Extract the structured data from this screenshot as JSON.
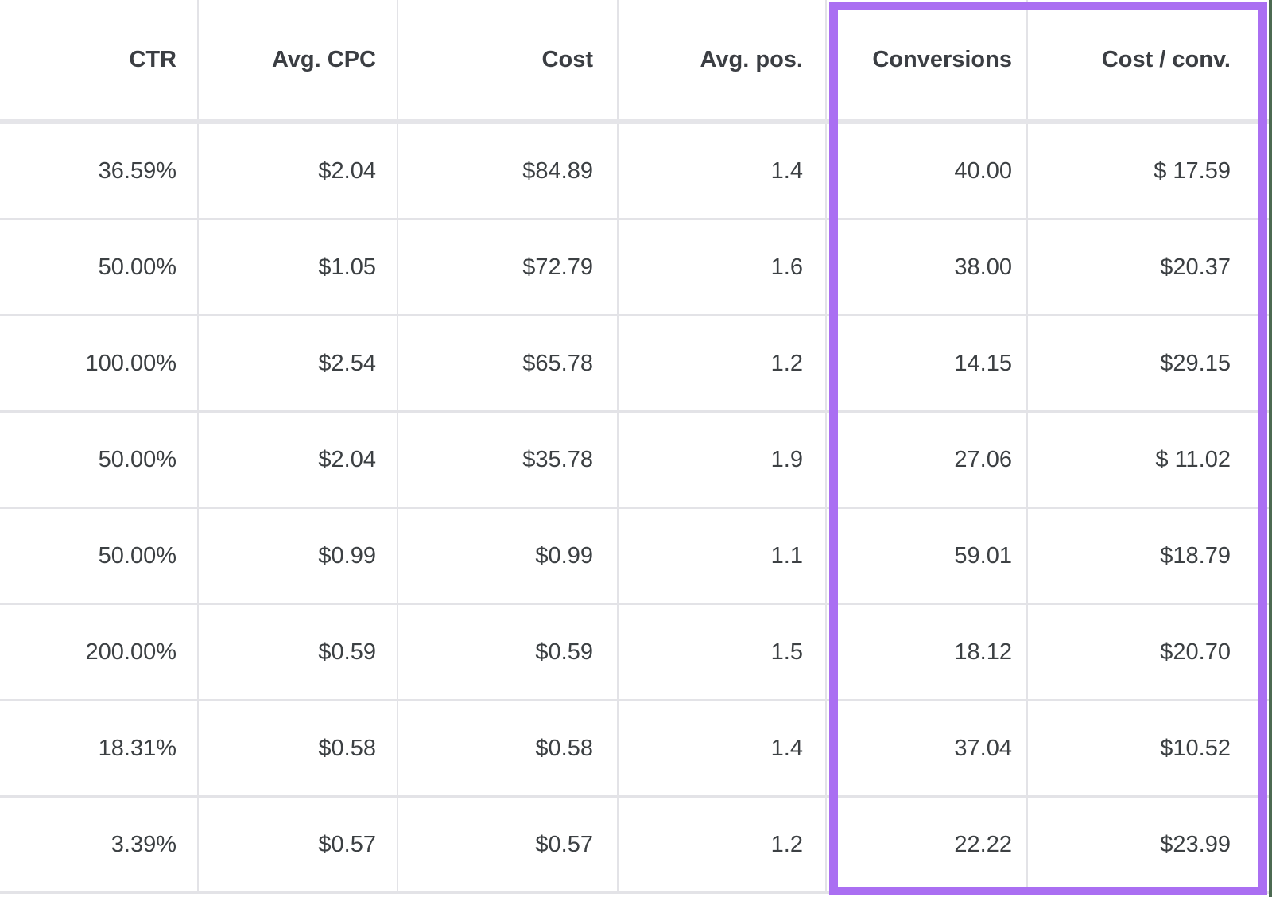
{
  "table": {
    "columns": [
      {
        "id": "ctr",
        "label": "CTR"
      },
      {
        "id": "avg_cpc",
        "label": "Avg. CPC"
      },
      {
        "id": "cost",
        "label": "Cost"
      },
      {
        "id": "avg_pos",
        "label": "Avg. pos."
      },
      {
        "id": "conversions",
        "label": "Conversions"
      },
      {
        "id": "cost_per_conv",
        "label": "Cost / conv."
      }
    ],
    "rows": [
      [
        "36.59%",
        "$2.04",
        "$84.89",
        "1.4",
        "40.00",
        "$ 17.59"
      ],
      [
        "50.00%",
        "$1.05",
        "$72.79",
        "1.6",
        "38.00",
        "$20.37"
      ],
      [
        "100.00%",
        "$2.54",
        "$65.78",
        "1.2",
        "14.15",
        "$29.15"
      ],
      [
        "50.00%",
        "$2.04",
        "$35.78",
        "1.9",
        "27.06",
        "$ 11.02"
      ],
      [
        "50.00%",
        "$0.99",
        "$0.99",
        "1.1",
        "59.01",
        "$18.79"
      ],
      [
        "200.00%",
        "$0.59",
        "$0.59",
        "1.5",
        "18.12",
        "$20.70"
      ],
      [
        "18.31%",
        "$0.58",
        "$0.58",
        "1.4",
        "37.04",
        "$10.52"
      ],
      [
        "3.39%",
        "$0.57",
        "$0.57",
        "1.2",
        "22.22",
        "$23.99"
      ]
    ]
  },
  "highlight": {
    "highlighted_columns": [
      "Conversions",
      "Cost / conv."
    ],
    "color": "#aa6ff2"
  },
  "colors": {
    "text": "#3c4043",
    "grid_line": "#e3e3e7",
    "header_divider": "#e5e5e9",
    "highlight": "#aa6ff2",
    "right_edge_strip": "#4c6a52"
  }
}
